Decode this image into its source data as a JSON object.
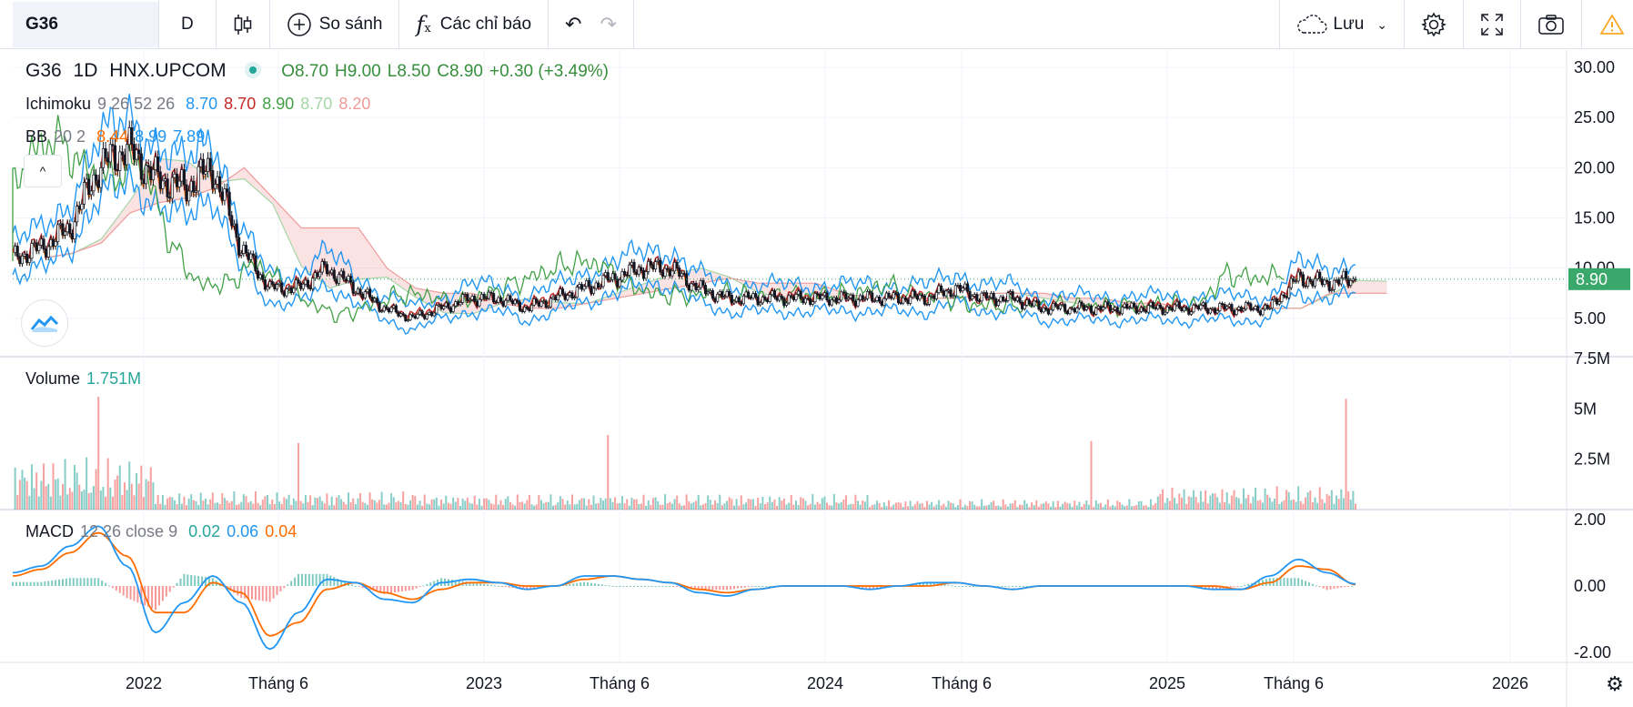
{
  "toolbar": {
    "symbol": "G36",
    "interval": "D",
    "compare_label": "So sánh",
    "indicators_label": "Các chỉ báo",
    "save_label": "Lưu"
  },
  "legend": {
    "symbol": "G36",
    "interval": "1D",
    "exchange": "HNX.UPCOM",
    "open": "O8.70",
    "high": "H9.00",
    "low": "L8.50",
    "close": "C8.90",
    "change": "+0.30 (+3.49%)",
    "ichimoku": {
      "name": "Ichimoku",
      "params": "9 26 52 26",
      "v1": "8.70",
      "v2": "8.70",
      "v3": "8.90",
      "v4": "8.70",
      "v5": "8.20"
    },
    "bb": {
      "name": "BB",
      "params": "20 2",
      "v1": "8.44",
      "v2": "8.99",
      "v3": "7.89"
    },
    "volume": {
      "name": "Volume",
      "value": "1.751M"
    },
    "macd": {
      "name": "MACD",
      "params": "12 26 close 9",
      "v1": "0.02",
      "v2": "0.06",
      "v3": "0.04"
    }
  },
  "colors": {
    "up": "#26a69a",
    "down": "#ef5350",
    "price_label_bg": "#3aa86b",
    "bb_blue": "#2196f3",
    "ichi_red": "#c62828",
    "ichi_green": "#43a047",
    "macd_orange": "#ff6d00"
  },
  "chart_data": [
    {
      "type": "line",
      "title": "G36 1D HNX.UPCOM",
      "x_labels": [
        "2022",
        "Tháng 6",
        "2023",
        "Tháng 6",
        "2024",
        "Tháng 6",
        "2025",
        "Tháng 6",
        "2026"
      ],
      "y_ticks": [
        "30.00",
        "25.00",
        "20.00",
        "15.00",
        "10.00",
        "5.00"
      ],
      "ylim": [
        0,
        30
      ],
      "last_price": "8.90",
      "series": [
        {
          "name": "Close",
          "x": [
            "2021-09",
            "2021-10",
            "2021-11",
            "2021-12",
            "2022-01",
            "2022-02",
            "2022-03",
            "2022-04",
            "2022-05",
            "2022-06",
            "2022-07",
            "2022-08",
            "2022-09",
            "2022-10",
            "2022-11",
            "2022-12",
            "2023-01",
            "2023-02",
            "2023-03",
            "2023-04",
            "2023-05",
            "2023-06",
            "2023-07",
            "2023-08",
            "2023-09",
            "2023-10",
            "2023-11",
            "2023-12",
            "2024-01",
            "2024-02",
            "2024-03",
            "2024-04",
            "2024-05",
            "2024-06",
            "2024-07",
            "2024-08",
            "2024-09",
            "2024-10",
            "2024-11",
            "2024-12",
            "2025-01",
            "2025-02",
            "2025-03",
            "2025-04",
            "2025-05",
            "2025-06",
            "2025-07",
            "2025-08"
          ],
          "values": [
            11,
            12,
            14,
            20,
            22,
            19,
            18,
            20,
            12,
            8,
            8,
            10,
            8,
            6,
            5,
            6,
            7,
            7,
            6,
            7,
            8,
            9,
            10,
            10,
            8,
            7,
            7,
            7,
            7,
            7,
            7,
            7,
            7,
            8,
            7,
            7,
            6,
            6,
            6,
            6,
            6,
            6,
            6,
            6,
            6,
            9,
            8.5,
            8.9
          ]
        }
      ]
    },
    {
      "type": "bar",
      "title": "Volume",
      "y_ticks": [
        "7.5M",
        "5M",
        "2.5M"
      ],
      "ylim": [
        0,
        7.5
      ],
      "last_value": "1.751M"
    },
    {
      "type": "line",
      "title": "MACD 12 26 close 9",
      "y_ticks": [
        "2.00",
        "0.00",
        "-2.00"
      ],
      "ylim": [
        -2.3,
        2.3
      ],
      "series": [
        {
          "name": "MACD",
          "values": [
            0.4,
            0.6,
            1.2,
            1.8,
            0.6,
            -1.4,
            -0.5,
            0.3,
            -0.5,
            -1.9,
            -0.8,
            0.2,
            0.1,
            -0.4,
            -0.5,
            0.1,
            0.2,
            0.1,
            -0.1,
            0.0,
            0.3,
            0.3,
            0.2,
            0.1,
            -0.2,
            -0.3,
            -0.1,
            0.0,
            0.0,
            0.0,
            -0.1,
            0.0,
            0.1,
            0.1,
            0.0,
            -0.1,
            0.0,
            0.0,
            0.0,
            0.0,
            0.0,
            0.0,
            -0.1,
            -0.1,
            0.3,
            0.8,
            0.4,
            0.06
          ]
        },
        {
          "name": "Signal",
          "values": [
            0.3,
            0.5,
            1.0,
            1.6,
            0.9,
            -0.8,
            -0.8,
            0.1,
            -0.2,
            -1.5,
            -1.1,
            -0.1,
            0.1,
            -0.2,
            -0.4,
            -0.1,
            0.1,
            0.1,
            0.0,
            0.0,
            0.2,
            0.3,
            0.2,
            0.1,
            -0.1,
            -0.2,
            -0.1,
            0.0,
            0.0,
            0.0,
            0.0,
            0.0,
            0.0,
            0.1,
            0.0,
            -0.1,
            0.0,
            0.0,
            0.0,
            0.0,
            0.0,
            0.0,
            0.0,
            -0.1,
            0.1,
            0.6,
            0.5,
            0.04
          ]
        }
      ]
    }
  ]
}
